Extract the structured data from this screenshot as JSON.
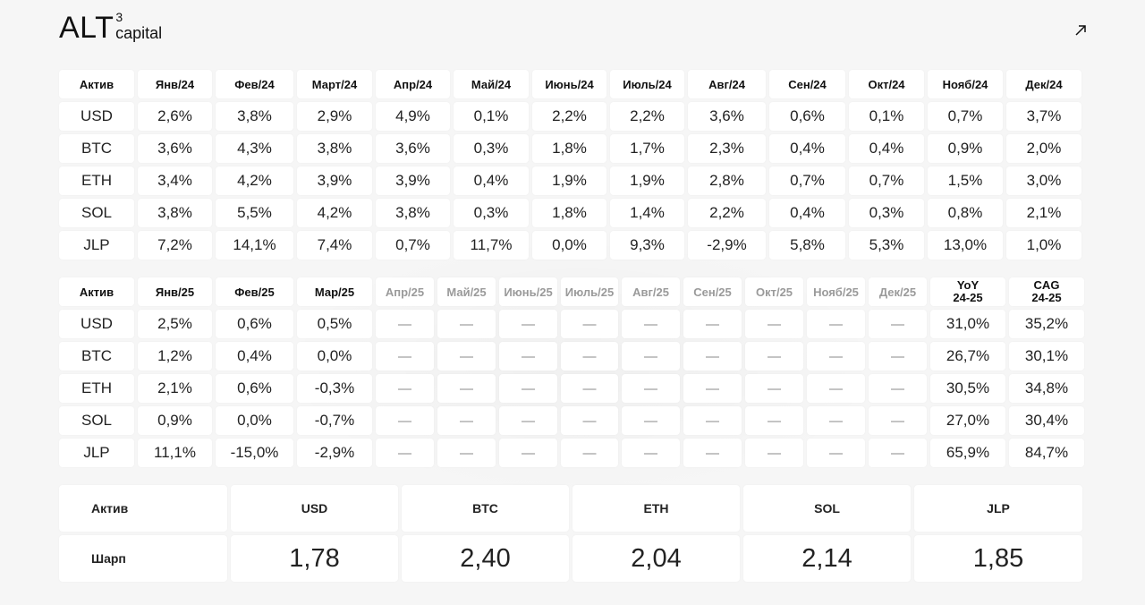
{
  "brand": {
    "name": "ALT",
    "superscript": "3",
    "suffix": "capital"
  },
  "open_icon": "arrow-up-right-icon",
  "table_2024": {
    "header": [
      "Актив",
      "Янв/24",
      "Фев/24",
      "Март/24",
      "Апр/24",
      "Май/24",
      "Июнь/24",
      "Июль/24",
      "Авг/24",
      "Сен/24",
      "Окт/24",
      "Нояб/24",
      "Дек/24"
    ],
    "rows": [
      [
        "USD",
        "2,6%",
        "3,8%",
        "2,9%",
        "4,9%",
        "0,1%",
        "2,2%",
        "2,2%",
        "3,6%",
        "0,6%",
        "0,1%",
        "0,7%",
        "3,7%"
      ],
      [
        "BTC",
        "3,6%",
        "4,3%",
        "3,8%",
        "3,6%",
        "0,3%",
        "1,8%",
        "1,7%",
        "2,3%",
        "0,4%",
        "0,4%",
        "0,9%",
        "2,0%"
      ],
      [
        "ETH",
        "3,4%",
        "4,2%",
        "3,9%",
        "3,9%",
        "0,4%",
        "1,9%",
        "1,9%",
        "2,8%",
        "0,7%",
        "0,7%",
        "1,5%",
        "3,0%"
      ],
      [
        "SOL",
        "3,8%",
        "5,5%",
        "4,2%",
        "3,8%",
        "0,3%",
        "1,8%",
        "1,4%",
        "2,2%",
        "0,4%",
        "0,3%",
        "0,8%",
        "2,1%"
      ],
      [
        "JLP",
        "7,2%",
        "14,1%",
        "7,4%",
        "0,7%",
        "11,7%",
        "0,0%",
        "9,3%",
        "-2,9%",
        "5,8%",
        "5,3%",
        "13,0%",
        "1,0%"
      ]
    ]
  },
  "table_2025": {
    "header": [
      "Актив",
      "Янв/25",
      "Фев/25",
      "Мар/25",
      "Апр/25",
      "Май/25",
      "Июнь/25",
      "Июль/25",
      "Авг/25",
      "Сен/25",
      "Окт/25",
      "Нояб/25",
      "Дек/25",
      "YoY\n24-25",
      "CAG\n24-25"
    ],
    "dim_header_indices": [
      4,
      5,
      6,
      7,
      8,
      9,
      10,
      11,
      12
    ],
    "rows": [
      [
        "USD",
        "2,5%",
        "0,6%",
        "0,5%",
        "—",
        "—",
        "—",
        "—",
        "—",
        "—",
        "—",
        "—",
        "—",
        "31,0%",
        "35,2%"
      ],
      [
        "BTC",
        "1,2%",
        "0,4%",
        "0,0%",
        "—",
        "—",
        "—",
        "—",
        "—",
        "—",
        "—",
        "—",
        "—",
        "26,7%",
        "30,1%"
      ],
      [
        "ETH",
        "2,1%",
        "0,6%",
        "-0,3%",
        "—",
        "—",
        "—",
        "—",
        "—",
        "—",
        "—",
        "—",
        "—",
        "30,5%",
        "34,8%"
      ],
      [
        "SOL",
        "0,9%",
        "0,0%",
        "-0,7%",
        "—",
        "—",
        "—",
        "—",
        "—",
        "—",
        "—",
        "—",
        "—",
        "27,0%",
        "30,4%"
      ],
      [
        "JLP",
        "11,1%",
        "-15,0%",
        "-2,9%",
        "—",
        "—",
        "—",
        "—",
        "—",
        "—",
        "—",
        "—",
        "—",
        "65,9%",
        "84,7%"
      ]
    ]
  },
  "sharpe": {
    "header_label": "Актив",
    "row_label": "Шарп",
    "assets": [
      "USD",
      "BTC",
      "ETH",
      "SOL",
      "JLP"
    ],
    "values": [
      "1,78",
      "2,40",
      "2,04",
      "2,14",
      "1,85"
    ]
  }
}
